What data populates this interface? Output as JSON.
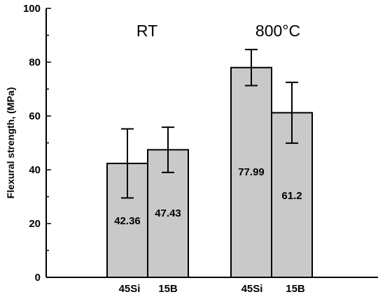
{
  "chart_data": {
    "type": "bar",
    "ylabel": "Flexural strength, (MPa)",
    "ylim": [
      0,
      100
    ],
    "yticks": [
      "0",
      "20",
      "40",
      "60",
      "80",
      "100"
    ],
    "groups": [
      {
        "label": "RT",
        "bars": [
          {
            "category": "45Si",
            "value": 42.36,
            "value_label": "42.36",
            "error_low": 29.5,
            "error_high": 55.2
          },
          {
            "category": "15B",
            "value": 47.43,
            "value_label": "47.43",
            "error_low": 39.0,
            "error_high": 55.8
          }
        ]
      },
      {
        "label": "800°C",
        "bars": [
          {
            "category": "45Si",
            "value": 77.99,
            "value_label": "77.99",
            "error_low": 71.3,
            "error_high": 84.7
          },
          {
            "category": "15B",
            "value": 61.2,
            "value_label": "61.2",
            "error_low": 49.9,
            "error_high": 72.5
          }
        ]
      }
    ],
    "bar_fill": "#c9c9c9",
    "bar_stroke": "#000000",
    "grid": false,
    "legend": "none"
  }
}
